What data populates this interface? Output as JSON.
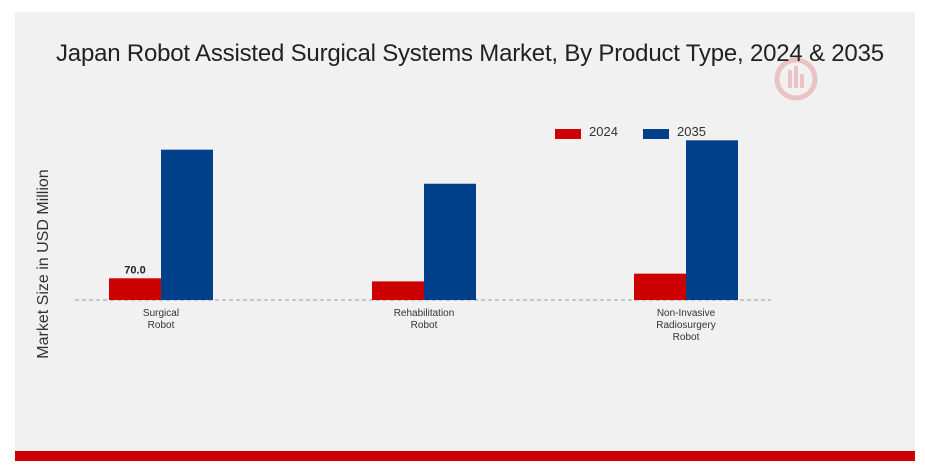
{
  "chart_data": {
    "type": "bar",
    "title": "Japan Robot Assisted Surgical Systems Market, By Product Type, 2024 & 2035",
    "ylabel": "Market Size in USD Million",
    "xlabel": "",
    "categories": [
      [
        "Surgical",
        "Robot"
      ],
      [
        "Rehabilitation",
        "Robot"
      ],
      [
        "Non-Invasive",
        "Radiosurgery",
        "Robot"
      ]
    ],
    "series": [
      {
        "name": "2024",
        "color": "#cc0000",
        "values": [
          70.0,
          60.0,
          85.0
        ],
        "labels": [
          "70.0",
          "",
          ""
        ]
      },
      {
        "name": "2035",
        "color": "#003f8a",
        "values": [
          485.0,
          375.0,
          515.0
        ],
        "labels": [
          "",
          "",
          ""
        ]
      }
    ],
    "ylim": [
      0,
      800
    ],
    "grid": false,
    "legend_position": "top-right",
    "baseline_style": "dashed"
  },
  "logo": {
    "icon": "watermark-logo-icon",
    "color": "#cc0000"
  },
  "bottom_bar_color": "#cc0000"
}
